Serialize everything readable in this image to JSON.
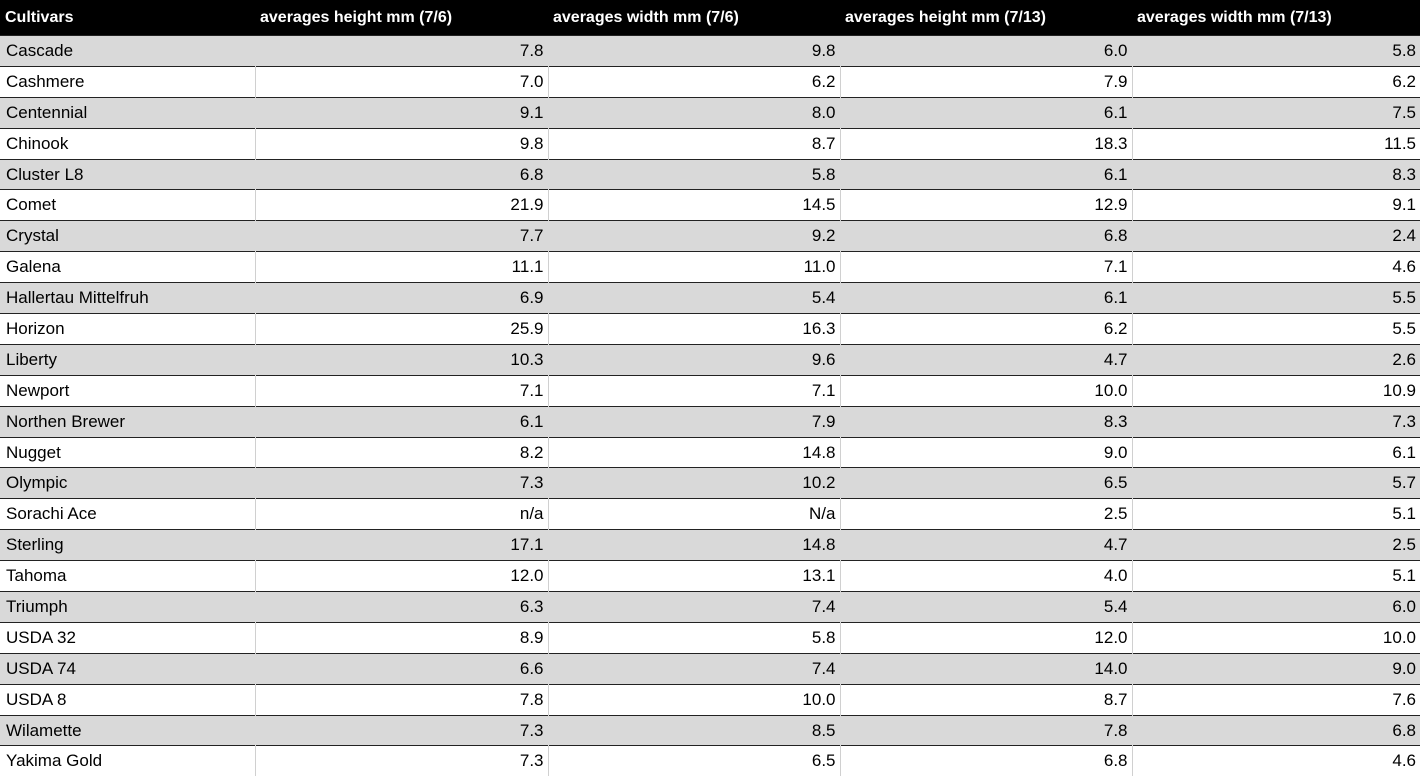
{
  "table": {
    "header": [
      "Cultivars",
      "averages height mm (7/6)",
      "averages width mm (7/6)",
      "averages height mm (7/13)",
      "averages width mm (7/13)"
    ],
    "rows": [
      [
        "Cascade",
        "7.8",
        "9.8",
        "6.0",
        "5.8"
      ],
      [
        "Cashmere",
        "7.0",
        "6.2",
        "7.9",
        "6.2"
      ],
      [
        "Centennial",
        "9.1",
        "8.0",
        "6.1",
        "7.5"
      ],
      [
        "Chinook",
        "9.8",
        "8.7",
        "18.3",
        "11.5"
      ],
      [
        "Cluster L8",
        "6.8",
        "5.8",
        "6.1",
        "8.3"
      ],
      [
        "Comet",
        "21.9",
        "14.5",
        "12.9",
        "9.1"
      ],
      [
        "Crystal",
        "7.7",
        "9.2",
        "6.8",
        "2.4"
      ],
      [
        "Galena",
        "11.1",
        "11.0",
        "7.1",
        "4.6"
      ],
      [
        "Hallertau Mittelfruh",
        "6.9",
        "5.4",
        "6.1",
        "5.5"
      ],
      [
        "Horizon",
        "25.9",
        "16.3",
        "6.2",
        "5.5"
      ],
      [
        "Liberty",
        "10.3",
        "9.6",
        "4.7",
        "2.6"
      ],
      [
        "Newport",
        "7.1",
        "7.1",
        "10.0",
        "10.9"
      ],
      [
        "Northen Brewer",
        "6.1",
        "7.9",
        "8.3",
        "7.3"
      ],
      [
        "Nugget",
        "8.2",
        "14.8",
        "9.0",
        "6.1"
      ],
      [
        "Olympic",
        "7.3",
        "10.2",
        "6.5",
        "5.7"
      ],
      [
        "Sorachi Ace",
        "n/a",
        "N/a",
        "2.5",
        "5.1"
      ],
      [
        "Sterling",
        "17.1",
        "14.8",
        "4.7",
        "2.5"
      ],
      [
        "Tahoma",
        "12.0",
        "13.1",
        "4.0",
        "5.1"
      ],
      [
        "Triumph",
        "6.3",
        "7.4",
        "5.4",
        "6.0"
      ],
      [
        "USDA 32",
        "8.9",
        "5.8",
        "12.0",
        "10.0"
      ],
      [
        "USDA 74",
        "6.6",
        "7.4",
        "14.0",
        "9.0"
      ],
      [
        "USDA 8",
        "7.8",
        "10.0",
        "8.7",
        "7.6"
      ],
      [
        "Wilamette",
        "7.3",
        "8.5",
        "7.8",
        "6.8"
      ],
      [
        "Yakima Gold",
        "7.3",
        "6.5",
        "6.8",
        "4.6"
      ]
    ]
  }
}
